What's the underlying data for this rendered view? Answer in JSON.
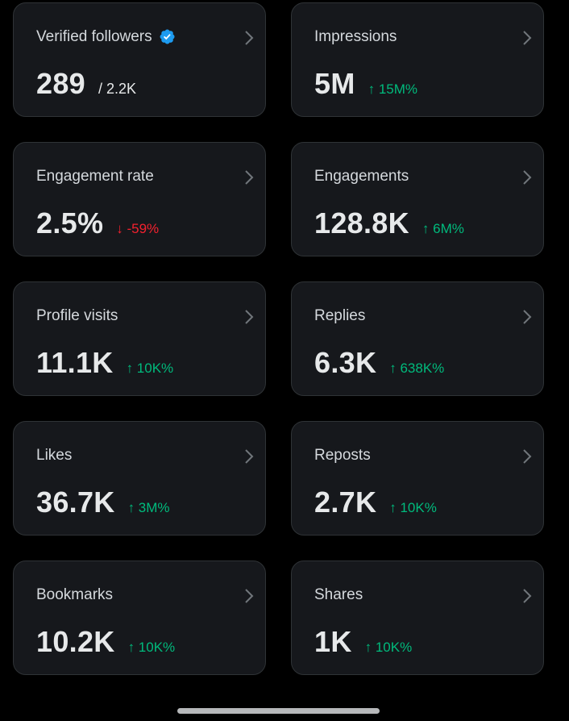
{
  "colors": {
    "card_background": "#16181c",
    "card_border": "#2f3336",
    "value_text": "#e7e9ea",
    "label_text": "#d5d9dd",
    "positive": "#00ba7c",
    "negative": "#f4212e",
    "verified_badge": "#1d9bf0"
  },
  "cards": [
    {
      "label": "Verified followers",
      "value": "289",
      "secondary": "/ 2.2K",
      "verified_icon": "verified-badge-icon",
      "chevron_icon": "chevron-right-icon"
    },
    {
      "label": "Impressions",
      "value": "5M",
      "change": "↑ 15M%",
      "direction": "up",
      "chevron_icon": "chevron-right-icon"
    },
    {
      "label": "Engagement rate",
      "value": "2.5%",
      "change": "↓ -59%",
      "direction": "down",
      "chevron_icon": "chevron-right-icon"
    },
    {
      "label": "Engagements",
      "value": "128.8K",
      "change": "↑ 6M%",
      "direction": "up",
      "chevron_icon": "chevron-right-icon"
    },
    {
      "label": "Profile visits",
      "value": "11.1K",
      "change": "↑ 10K%",
      "direction": "up",
      "chevron_icon": "chevron-right-icon"
    },
    {
      "label": "Replies",
      "value": "6.3K",
      "change": "↑ 638K%",
      "direction": "up",
      "chevron_icon": "chevron-right-icon"
    },
    {
      "label": "Likes",
      "value": "36.7K",
      "change": "↑ 3M%",
      "direction": "up",
      "chevron_icon": "chevron-right-icon"
    },
    {
      "label": "Reposts",
      "value": "2.7K",
      "change": "↑ 10K%",
      "direction": "up",
      "chevron_icon": "chevron-right-icon"
    },
    {
      "label": "Bookmarks",
      "value": "10.2K",
      "change": "↑ 10K%",
      "direction": "up",
      "chevron_icon": "chevron-right-icon"
    },
    {
      "label": "Shares",
      "value": "1K",
      "change": "↑ 10K%",
      "direction": "up",
      "chevron_icon": "chevron-right-icon"
    }
  ]
}
